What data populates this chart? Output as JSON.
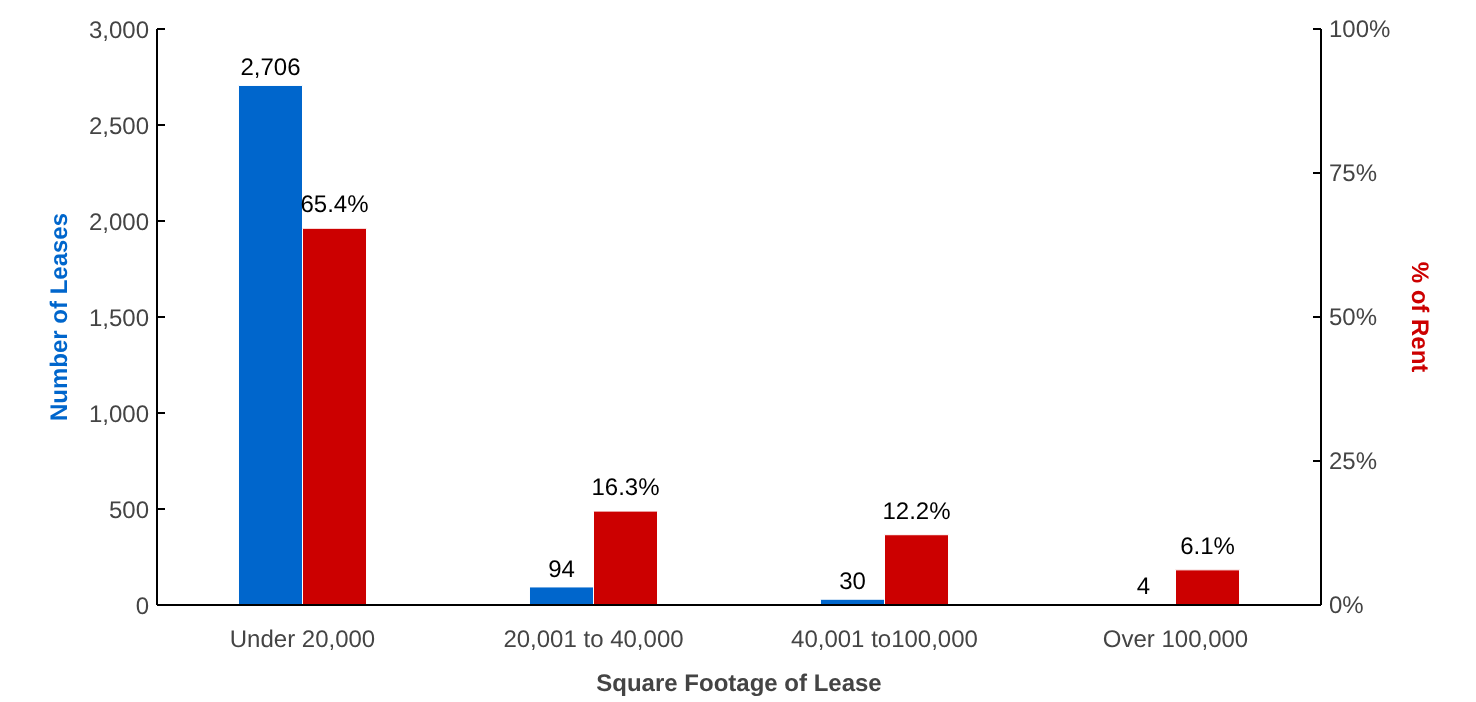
{
  "chart_data": {
    "type": "bar",
    "xlabel": "Square Footage of Lease",
    "categories": [
      "Under 20,000",
      "20,001 to 40,000",
      "40,001 to100,000",
      "Over 100,000"
    ],
    "series": [
      {
        "name": "Number of Leases",
        "color": "#0066cc",
        "values": [
          2706,
          94,
          30,
          4
        ],
        "value_labels": [
          "2,706",
          "94",
          "30",
          "4"
        ]
      },
      {
        "name": "% of Rent",
        "color": "#cc0000",
        "axis": "y2",
        "values": [
          65.4,
          16.3,
          12.2,
          6.1
        ],
        "value_labels": [
          "65.4%",
          "16.3%",
          "12.2%",
          "6.1%"
        ]
      }
    ],
    "ylim": [
      0,
      3000
    ],
    "yticks": [
      0,
      {
        "value": 500,
        "label": "500"
      },
      {
        "value": 1000,
        "label": "1,000"
      },
      {
        "value": 1500,
        "label": "1,500"
      },
      {
        "value": 2000,
        "label": "2,000"
      },
      {
        "value": 2500,
        "label": "2,500"
      },
      {
        "value": 3000,
        "label": "3,000"
      }
    ],
    "y2lim": [
      0,
      100
    ],
    "y2ticks": [
      {
        "value": 0,
        "label": "0%"
      },
      {
        "value": 25,
        "label": "25%"
      },
      {
        "value": 50,
        "label": "50%"
      },
      {
        "value": 75,
        "label": "75%"
      },
      {
        "value": 100,
        "label": "100%"
      }
    ],
    "grid": false
  }
}
